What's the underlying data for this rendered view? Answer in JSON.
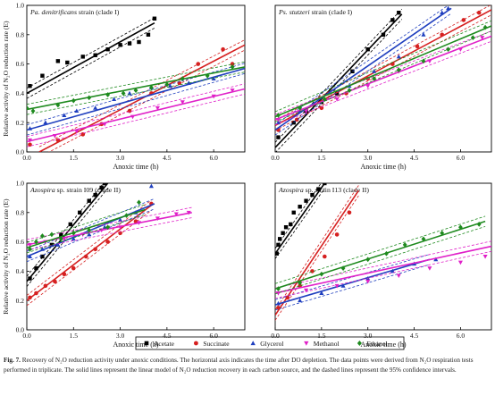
{
  "chart_data": [
    {
      "type": "scatter",
      "title": "Pa. denitrificans strain (clade I)",
      "title_italic": "Pa. denitrificans",
      "title_rest": " strain (clade I)",
      "xlabel": "Anoxic time (h)",
      "ylabel": "Relative activity of N₂O reduction rate (E)",
      "xlim": [
        0,
        7
      ],
      "ylim": [
        0,
        1.0
      ],
      "xticks": [
        "0.0",
        "1.5",
        "3.0",
        "4.5",
        "6.0"
      ],
      "yticks": [
        "0.0",
        "0.2",
        "0.4",
        "0.6",
        "0.8",
        "1.0"
      ],
      "series": [
        {
          "name": "Acetate",
          "marker": "square",
          "color": "#000000",
          "x": [
            0.1,
            0.5,
            1.0,
            1.3,
            1.8,
            2.2,
            2.6,
            3.0,
            3.3,
            3.6,
            3.9,
            4.1
          ],
          "y": [
            0.45,
            0.52,
            0.62,
            0.61,
            0.65,
            0.66,
            0.7,
            0.73,
            0.74,
            0.75,
            0.8,
            0.91
          ],
          "fit": [
            [
              0.0,
              0.4
            ],
            [
              4.1,
              0.88
            ]
          ]
        },
        {
          "name": "Succinate",
          "marker": "circle",
          "color": "#d62020",
          "x": [
            0.1,
            1.0,
            1.8,
            2.4,
            3.3,
            4.0,
            4.9,
            5.5,
            6.3,
            6.6
          ],
          "y": [
            0.05,
            0.08,
            0.12,
            0.19,
            0.28,
            0.4,
            0.47,
            0.6,
            0.7,
            0.6
          ],
          "fit": [
            [
              0.4,
              0.0
            ],
            [
              7.0,
              0.73
            ]
          ]
        },
        {
          "name": "Glycerol",
          "marker": "triangle",
          "color": "#1f3fbf",
          "x": [
            0.1,
            0.6,
            1.2,
            1.6,
            2.2,
            2.8,
            3.3,
            4.0,
            4.6,
            5.2,
            6.0
          ],
          "y": [
            0.16,
            0.2,
            0.25,
            0.28,
            0.3,
            0.36,
            0.4,
            0.44,
            0.45,
            0.47,
            0.5
          ],
          "fit": [
            [
              0.0,
              0.15
            ],
            [
              7.0,
              0.57
            ]
          ]
        },
        {
          "name": "Methanol",
          "marker": "triangle-down",
          "color": "#e020c8",
          "x": [
            0.1,
            0.9,
            1.6,
            2.5,
            3.4,
            4.2,
            5.0,
            6.0,
            6.6
          ],
          "y": [
            0.08,
            0.11,
            0.14,
            0.19,
            0.24,
            0.3,
            0.34,
            0.38,
            0.42
          ],
          "fit": [
            [
              0.0,
              0.07
            ],
            [
              7.0,
              0.43
            ]
          ]
        },
        {
          "name": "Ethanol",
          "marker": "diamond",
          "color": "#1e8a1e",
          "x": [
            0.0,
            0.2,
            1.0,
            1.5,
            2.0,
            2.6,
            3.1,
            3.5,
            4.0,
            4.5,
            5.0,
            5.8,
            6.6
          ],
          "y": [
            0.3,
            0.28,
            0.32,
            0.35,
            0.37,
            0.39,
            0.4,
            0.42,
            0.44,
            0.46,
            0.5,
            0.52,
            0.58
          ],
          "fit": [
            [
              0.0,
              0.29
            ],
            [
              7.0,
              0.58
            ]
          ]
        }
      ]
    },
    {
      "type": "scatter",
      "title": "Ps. stutzeri strain (clade I)",
      "title_italic": "Ps. stutzeri",
      "title_rest": " strain (clade I)",
      "xlabel": "Anoxic time (h)",
      "ylabel": "",
      "xlim": [
        0,
        7
      ],
      "ylim": [
        0,
        1.0
      ],
      "xticks": [
        "0.0",
        "1.5",
        "3.0",
        "4.5",
        "6.0"
      ],
      "yticks": [],
      "series": [
        {
          "name": "Acetate",
          "marker": "square",
          "color": "#000000",
          "x": [
            0.1,
            0.6,
            1.0,
            1.5,
            2.0,
            2.5,
            3.0,
            3.5,
            3.8,
            4.0
          ],
          "y": [
            0.1,
            0.2,
            0.28,
            0.34,
            0.4,
            0.55,
            0.7,
            0.8,
            0.9,
            0.95
          ],
          "fit": [
            [
              0.0,
              0.03
            ],
            [
              4.1,
              0.94
            ]
          ]
        },
        {
          "name": "Succinate",
          "marker": "circle",
          "color": "#d62020",
          "x": [
            0.1,
            0.7,
            1.5,
            2.3,
            3.0,
            3.8,
            4.6,
            5.4,
            6.1,
            6.6
          ],
          "y": [
            0.15,
            0.22,
            0.3,
            0.4,
            0.5,
            0.6,
            0.72,
            0.8,
            0.9,
            0.95
          ],
          "fit": [
            [
              0.0,
              0.18
            ],
            [
              7.0,
              0.97
            ]
          ]
        },
        {
          "name": "Glycerol",
          "marker": "triangle",
          "color": "#1f3fbf",
          "x": [
            0.1,
            0.8,
            1.6,
            2.4,
            3.2,
            4.0,
            4.8,
            5.4,
            5.6
          ],
          "y": [
            0.2,
            0.28,
            0.36,
            0.45,
            0.55,
            0.65,
            0.8,
            0.95,
            0.98
          ],
          "fit": [
            [
              0.0,
              0.15
            ],
            [
              5.7,
              0.98
            ]
          ]
        },
        {
          "name": "Methanol",
          "marker": "triangle-down",
          "color": "#e020c8",
          "x": [
            0.1,
            1.0,
            2.0,
            3.0,
            4.0,
            5.0,
            6.0,
            6.7
          ],
          "y": [
            0.22,
            0.28,
            0.36,
            0.45,
            0.55,
            0.62,
            0.7,
            0.78
          ],
          "fit": [
            [
              0.0,
              0.22
            ],
            [
              7.0,
              0.79
            ]
          ]
        },
        {
          "name": "Ethanol",
          "marker": "diamond",
          "color": "#1e8a1e",
          "x": [
            0.1,
            0.8,
            1.6,
            2.4,
            3.2,
            4.0,
            4.8,
            5.6,
            6.4,
            6.8
          ],
          "y": [
            0.25,
            0.3,
            0.36,
            0.42,
            0.5,
            0.56,
            0.62,
            0.7,
            0.78,
            0.85
          ],
          "fit": [
            [
              0.0,
              0.24
            ],
            [
              7.0,
              0.86
            ]
          ]
        }
      ]
    },
    {
      "type": "scatter",
      "title": "Azospira sp. strain I09 (clade II)",
      "title_italic": "Azospira",
      "title_rest": " sp. strain I09 (clade II)",
      "xlabel": "Anoxic time (h)",
      "ylabel": "Relative activity of N₂O reduction rate (E)",
      "xlim": [
        0,
        7
      ],
      "ylim": [
        0,
        1.0
      ],
      "xticks": [
        "0.0",
        "1.5",
        "3.0",
        "4.5",
        "6.0"
      ],
      "yticks": [
        "0.0",
        "0.2",
        "0.4",
        "0.6",
        "0.8",
        "1.0"
      ],
      "series": [
        {
          "name": "Acetate",
          "marker": "square",
          "color": "#000000",
          "x": [
            0.1,
            0.3,
            0.5,
            0.8,
            1.1,
            1.4,
            1.7,
            2.0,
            2.2,
            2.4,
            2.5
          ],
          "y": [
            0.35,
            0.42,
            0.5,
            0.58,
            0.65,
            0.72,
            0.8,
            0.88,
            0.92,
            0.97,
            1.0
          ],
          "fit": [
            [
              0.0,
              0.33
            ],
            [
              2.6,
              1.0
            ]
          ]
        },
        {
          "name": "Succinate",
          "marker": "circle",
          "color": "#d62020",
          "x": [
            0.1,
            0.3,
            0.6,
            0.9,
            1.2,
            1.5,
            1.9,
            2.2,
            2.6,
            3.0,
            3.5,
            4.0
          ],
          "y": [
            0.22,
            0.25,
            0.3,
            0.33,
            0.38,
            0.42,
            0.5,
            0.55,
            0.6,
            0.66,
            0.74,
            0.86
          ],
          "fit": [
            [
              0.0,
              0.2
            ],
            [
              4.0,
              0.85
            ]
          ]
        },
        {
          "name": "Glycerol",
          "marker": "triangle",
          "color": "#1f3fbf",
          "x": [
            0.1,
            0.5,
            1.0,
            1.5,
            2.0,
            2.5,
            3.0,
            3.5,
            4.0
          ],
          "y": [
            0.5,
            0.55,
            0.58,
            0.62,
            0.65,
            0.7,
            0.75,
            0.8,
            0.98
          ],
          "fit": [
            [
              0.0,
              0.5
            ],
            [
              4.1,
              0.86
            ]
          ]
        },
        {
          "name": "Methanol",
          "marker": "triangle-down",
          "color": "#e020c8",
          "x": [
            0.1,
            0.6,
            1.2,
            1.8,
            2.4,
            3.0,
            3.6,
            4.2,
            4.8,
            5.2
          ],
          "y": [
            0.58,
            0.6,
            0.62,
            0.65,
            0.68,
            0.7,
            0.73,
            0.76,
            0.79,
            0.8
          ],
          "fit": [
            [
              0.0,
              0.58
            ],
            [
              5.3,
              0.8
            ]
          ]
        },
        {
          "name": "Ethanol",
          "marker": "diamond",
          "color": "#1e8a1e",
          "x": [
            0.1,
            0.3,
            0.5,
            0.8,
            1.1,
            1.5,
            2.0,
            2.6,
            3.2,
            3.6
          ],
          "y": [
            0.55,
            0.6,
            0.64,
            0.65,
            0.62,
            0.66,
            0.68,
            0.7,
            0.78,
            0.87
          ],
          "fit": [
            [
              0.0,
              0.56
            ],
            [
              3.8,
              0.82
            ]
          ]
        }
      ]
    },
    {
      "type": "scatter",
      "title": "Azospira sp. strain I13 (clade II)",
      "title_italic": "Azospira",
      "title_rest": " sp. strain I13 (clade II)",
      "xlabel": "Anoxic time (h)",
      "ylabel": "",
      "xlim": [
        0,
        7
      ],
      "ylim": [
        0,
        1.0
      ],
      "xticks": [
        "0.0",
        "1.5",
        "3.0",
        "4.5",
        "6.0"
      ],
      "yticks": [],
      "series": [
        {
          "name": "Acetate",
          "marker": "square",
          "color": "#000000",
          "x": [
            0.05,
            0.1,
            0.15,
            0.25,
            0.35,
            0.5,
            0.6,
            0.8,
            1.0,
            1.2,
            1.4,
            1.6
          ],
          "y": [
            0.52,
            0.58,
            0.62,
            0.66,
            0.7,
            0.72,
            0.8,
            0.84,
            0.88,
            0.92,
            0.96,
            1.0
          ],
          "fit": [
            [
              0.0,
              0.52
            ],
            [
              1.6,
              1.0
            ]
          ]
        },
        {
          "name": "Succinate",
          "marker": "circle",
          "color": "#d62020",
          "x": [
            0.1,
            0.4,
            0.8,
            1.2,
            1.6,
            2.0,
            2.4
          ],
          "y": [
            0.15,
            0.22,
            0.3,
            0.4,
            0.5,
            0.65,
            0.8
          ],
          "fit": [
            [
              0.0,
              0.1
            ],
            [
              2.7,
              0.95
            ]
          ]
        },
        {
          "name": "Glycerol",
          "marker": "triangle",
          "color": "#1f3fbf",
          "x": [
            0.1,
            0.8,
            1.5,
            2.2,
            3.0,
            3.8,
            4.5,
            5.2
          ],
          "y": [
            0.18,
            0.2,
            0.25,
            0.3,
            0.35,
            0.4,
            0.45,
            0.48
          ],
          "fit": [
            [
              0.0,
              0.17
            ],
            [
              5.0,
              0.48
            ]
          ]
        },
        {
          "name": "Methanol",
          "marker": "triangle-down",
          "color": "#e020c8",
          "x": [
            0.1,
            1.0,
            2.0,
            3.0,
            4.0,
            5.0,
            6.0,
            6.8
          ],
          "y": [
            0.25,
            0.27,
            0.3,
            0.33,
            0.37,
            0.42,
            0.46,
            0.5
          ],
          "fit": [
            [
              0.0,
              0.25
            ],
            [
              7.0,
              0.57
            ]
          ]
        },
        {
          "name": "Ethanol",
          "marker": "diamond",
          "color": "#1e8a1e",
          "x": [
            0.1,
            0.8,
            1.5,
            2.2,
            3.0,
            3.6,
            4.2,
            4.8,
            5.4,
            6.0,
            6.6
          ],
          "y": [
            0.28,
            0.32,
            0.38,
            0.42,
            0.48,
            0.52,
            0.58,
            0.62,
            0.66,
            0.7,
            0.72
          ],
          "fit": [
            [
              0.0,
              0.28
            ],
            [
              6.8,
              0.74
            ]
          ]
        }
      ]
    }
  ],
  "legend": {
    "items": [
      {
        "name": "Acetate",
        "marker": "square",
        "color": "#000000"
      },
      {
        "name": "Succinate",
        "marker": "circle",
        "color": "#d62020"
      },
      {
        "name": "Glycerol",
        "marker": "triangle",
        "color": "#1f3fbf"
      },
      {
        "name": "Methanol",
        "marker": "triangle-down",
        "color": "#e020c8"
      },
      {
        "name": "Ethanol",
        "marker": "diamond",
        "color": "#1e8a1e"
      }
    ]
  },
  "caption": {
    "label": "Fig. 7.",
    "text": "Recovery of N₂O reduction activity under anoxic conditions. The horizontal axis indicates the time after DO depletion. The data points were derived from N₂O respiration tests performed in triplicate. The solid lines represent the linear model of N₂O reduction recovery in each carbon source, and the dashed lines represent the 95% confidence intervals."
  }
}
